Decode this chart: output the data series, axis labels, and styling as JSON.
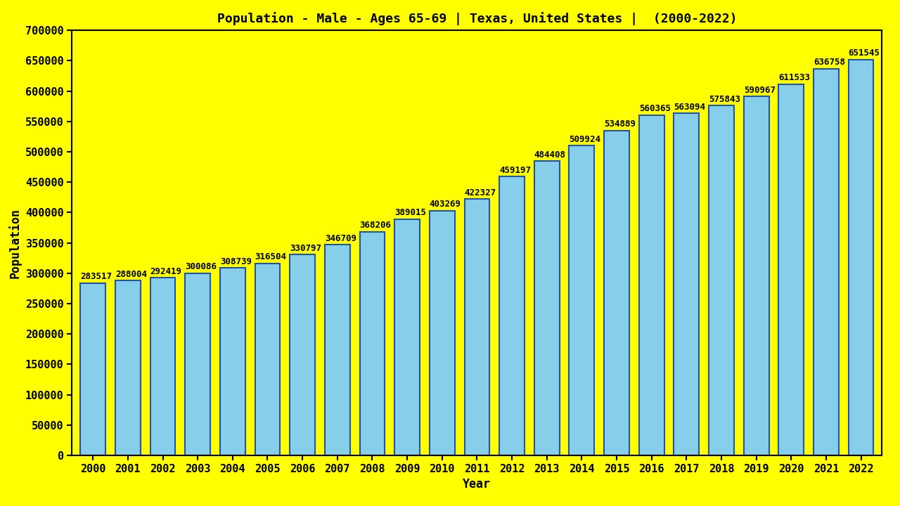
{
  "title": "Population - Male - Ages 65-69 | Texas, United States |  (2000-2022)",
  "xlabel": "Year",
  "ylabel": "Population",
  "background_color": "#FFFF00",
  "bar_color": "#87CEEB",
  "bar_edge_color": "#2255AA",
  "years": [
    2000,
    2001,
    2002,
    2003,
    2004,
    2005,
    2006,
    2007,
    2008,
    2009,
    2010,
    2011,
    2012,
    2013,
    2014,
    2015,
    2016,
    2017,
    2018,
    2019,
    2020,
    2021,
    2022
  ],
  "values": [
    283517,
    288004,
    292419,
    300086,
    308739,
    316504,
    330797,
    346709,
    368206,
    389015,
    403269,
    422327,
    459197,
    484408,
    509924,
    534889,
    560365,
    563094,
    575843,
    590967,
    611533,
    636758,
    651545
  ],
  "ylim": [
    0,
    700000
  ],
  "yticks": [
    0,
    50000,
    100000,
    150000,
    200000,
    250000,
    300000,
    350000,
    400000,
    450000,
    500000,
    550000,
    600000,
    650000,
    700000
  ],
  "title_fontsize": 13,
  "axis_label_fontsize": 12,
  "tick_fontsize": 11,
  "value_fontsize": 9,
  "bar_width": 0.72,
  "bar_edge_width": 1.5
}
